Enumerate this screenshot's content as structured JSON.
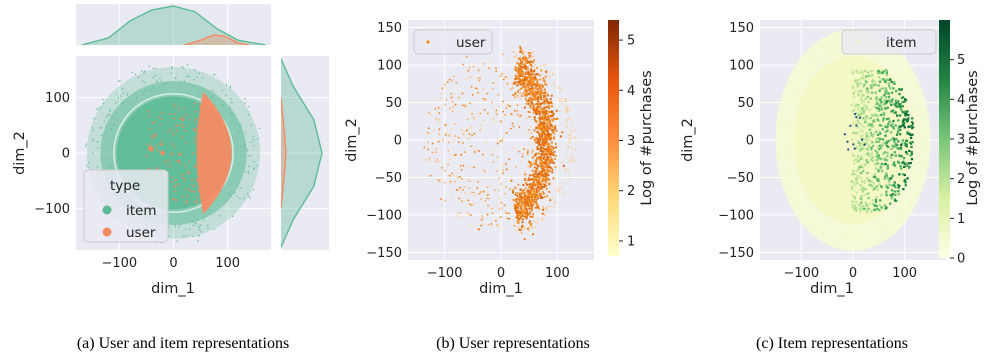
{
  "colors": {
    "item": "#5dbb97",
    "user": "#f58b64",
    "panel_bg": "#eaeaf2",
    "grid": "#ffffff",
    "user_scatter": "#f28a1c",
    "item_scatter_light": "#f3f8c6",
    "item_scatter_dark": "#1a6f3a"
  },
  "chart_data": [
    {
      "type": "scatter",
      "panel": "joint",
      "xlabel": "dim_1",
      "ylabel": "dim_2",
      "xlim": [
        -180,
        180
      ],
      "ylim": [
        -175,
        175
      ],
      "xticks": [
        -100,
        0,
        100
      ],
      "yticks": [
        -100,
        0,
        100
      ],
      "xtick_labels": [
        "−100",
        "0",
        "100"
      ],
      "ytick_labels": [
        "−100",
        "0",
        "100"
      ],
      "grid": true,
      "legend": {
        "title": "type",
        "placement": "bottom-left",
        "entries": [
          "item",
          "user"
        ]
      },
      "series": [
        {
          "name": "item",
          "shape": "disc",
          "center": [
            0,
            0
          ],
          "radius": [
            160,
            155
          ]
        },
        {
          "name": "user",
          "shape": "crescent",
          "x_range": [
            45,
            110
          ],
          "y_range": [
            -95,
            95
          ]
        }
      ],
      "marginal_x": {
        "item": [
          [
            -170,
            0.0
          ],
          [
            -120,
            0.18
          ],
          [
            -80,
            0.62
          ],
          [
            -40,
            0.9
          ],
          [
            0,
            1.0
          ],
          [
            40,
            0.85
          ],
          [
            80,
            0.42
          ],
          [
            120,
            0.12
          ],
          [
            170,
            0.0
          ]
        ],
        "user": [
          [
            20,
            0.0
          ],
          [
            50,
            0.12
          ],
          [
            75,
            0.26
          ],
          [
            95,
            0.22
          ],
          [
            120,
            0.05
          ],
          [
            140,
            0.0
          ]
        ]
      },
      "marginal_y": {
        "item": [
          [
            -170,
            0.0
          ],
          [
            -120,
            0.3
          ],
          [
            -60,
            0.8
          ],
          [
            0,
            1.0
          ],
          [
            60,
            0.8
          ],
          [
            120,
            0.3
          ],
          [
            170,
            0.0
          ]
        ],
        "user": [
          [
            -100,
            0.0
          ],
          [
            -40,
            0.08
          ],
          [
            0,
            0.12
          ],
          [
            40,
            0.08
          ],
          [
            100,
            0.0
          ]
        ]
      },
      "caption": "(a) User and item representations"
    },
    {
      "type": "scatter",
      "panel": "user",
      "xlabel": "dim_1",
      "ylabel": "dim_2",
      "xlim": [
        -165,
        165
      ],
      "ylim": [
        -160,
        160
      ],
      "xticks": [
        -100,
        0,
        100
      ],
      "yticks": [
        -150,
        -100,
        -50,
        0,
        50,
        100,
        150
      ],
      "xtick_labels": [
        "−100",
        "0",
        "100"
      ],
      "ytick_labels": [
        "−150",
        "−100",
        "−50",
        "0",
        "50",
        "100",
        "150"
      ],
      "grid": true,
      "legend": {
        "placement": "top-left",
        "entries": [
          "user"
        ]
      },
      "colorbar": {
        "label": "Log of #purchases",
        "ticks": [
          1,
          2,
          3,
          4,
          5
        ],
        "range": [
          0.7,
          5.4
        ],
        "colors": [
          "#ffffcc",
          "#fed976",
          "#fd8d3c",
          "#e6550d",
          "#7f2704"
        ]
      },
      "points_summary": {
        "dense_arc_x": [
          40,
          110
        ],
        "y_range": [
          -110,
          110
        ]
      },
      "caption": "(b) User representations"
    },
    {
      "type": "scatter",
      "panel": "item",
      "xlabel": "dim_1",
      "ylabel": "dim_2",
      "xlim": [
        -180,
        180
      ],
      "ylim": [
        -160,
        160
      ],
      "xticks": [
        -100,
        0,
        100
      ],
      "yticks": [
        -150,
        -100,
        -50,
        0,
        50,
        100,
        150
      ],
      "xtick_labels": [
        "−100",
        "0",
        "100"
      ],
      "ytick_labels": [
        "−150",
        "−100",
        "−50",
        "0",
        "50",
        "100",
        "150"
      ],
      "grid": true,
      "legend": {
        "placement": "top-right",
        "entries": [
          "item"
        ]
      },
      "colorbar": {
        "label": "Log of #purchases",
        "ticks": [
          0,
          1,
          2,
          3,
          4,
          5
        ],
        "range": [
          0,
          6
        ],
        "colors": [
          "#ffffe5",
          "#d9f0a3",
          "#78c679",
          "#238443",
          "#004529"
        ]
      },
      "points_summary": {
        "disc_center": [
          0,
          0
        ],
        "disc_radius": 150,
        "dark_region_x": [
          20,
          110
        ]
      },
      "caption": "(c) Item representations"
    }
  ]
}
